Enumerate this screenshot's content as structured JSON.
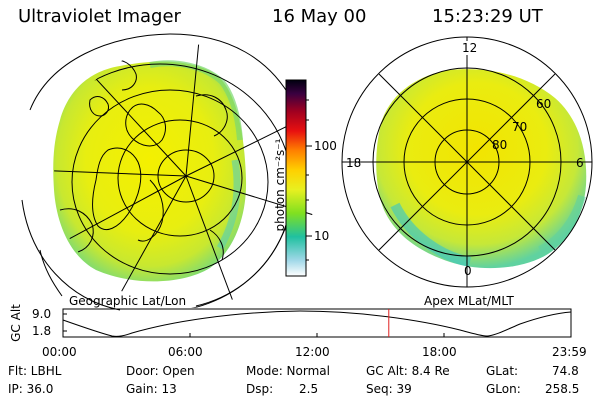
{
  "header": {
    "instrument": "Ultraviolet Imager",
    "date": "16 May 00",
    "time": "15:23:29 UT"
  },
  "colorbar": {
    "unit_label": "photon cm⁻²s⁻¹",
    "ticks": [
      "100",
      "10"
    ]
  },
  "left_panel": {
    "caption": "Geographic Lat/Lon"
  },
  "right_panel": {
    "caption": "Apex MLat/MLT",
    "mlt_labels": {
      "top": "12",
      "left": "18",
      "right": "6",
      "bottom": "0"
    },
    "lat_labels": [
      "60",
      "70",
      "80"
    ]
  },
  "altitude_plot": {
    "ylabel": "GC Alt",
    "y_ticks": [
      "9.0",
      "1.8"
    ],
    "x_ticks": [
      "00:00",
      "06:00",
      "12:00",
      "18:00",
      "23:59"
    ],
    "current_time_marker": "15:23:29",
    "marker_color": "#e02020"
  },
  "status": {
    "flt": "Flt: LBHL",
    "ip": "IP: 36.0",
    "door": "Door: Open",
    "gain": "Gain: 13",
    "mode": "Mode: Normal",
    "dsp_label": "Dsp:",
    "dsp_value": "2.5",
    "gc_alt": "GC Alt: 8.4 Re",
    "seq": "Seq: 39",
    "glat": "GLat:",
    "glat_value": "74.8",
    "glon": "GLon:",
    "glon_value": "258.5"
  }
}
